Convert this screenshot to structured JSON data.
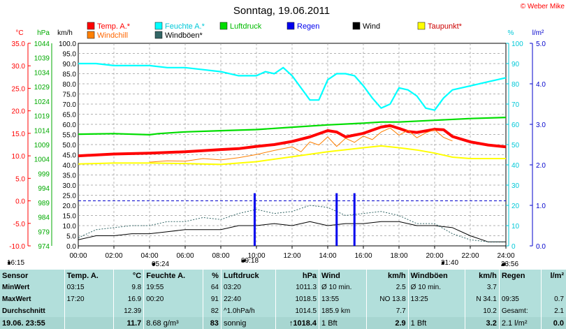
{
  "chart_data": {
    "type": "line",
    "title": "Sonntag, 19.06.2011",
    "copyright": "© Weber Mike",
    "legend": [
      {
        "label": "Temp. A.*",
        "color": "#ff0000"
      },
      {
        "label": "Feuchte A.*",
        "color": "#00ffff"
      },
      {
        "label": "Luftdruck",
        "color": "#00dd00"
      },
      {
        "label": "Regen",
        "color": "#0000ee"
      },
      {
        "label": "Wind",
        "color": "#000000"
      },
      {
        "label": "Taupunkt*",
        "color": "#ffff00"
      },
      {
        "label": "Windchill",
        "color": "#ff8000"
      },
      {
        "label": "Windböen*",
        "color": "#336666"
      }
    ],
    "axes": {
      "temp": {
        "unit": "°C",
        "ticks": [
          "35.0",
          "30.0",
          "25.0",
          "20.0",
          "15.0",
          "10.0",
          "5.0",
          "0.0",
          "-5.0",
          "-10.0"
        ],
        "ylim": [
          -10,
          35
        ]
      },
      "pressure": {
        "unit": "hPa",
        "ticks": [
          "1044",
          "1039",
          "1034",
          "1029",
          "1024",
          "1019",
          "1014",
          "1009",
          "1004",
          "999",
          "994",
          "989",
          "984",
          "979",
          "974"
        ],
        "ylim": [
          974,
          1044
        ]
      },
      "wind": {
        "unit": "km/h",
        "ticks": [
          "100.0",
          "95.0",
          "90.0",
          "85.0",
          "80.0",
          "75.0",
          "70.0",
          "65.0",
          "60.0",
          "55.0",
          "50.0",
          "45.0",
          "40.0",
          "35.0",
          "30.0",
          "25.0",
          "20.0",
          "15.0",
          "10.0",
          "5.0",
          "0.0"
        ],
        "ylim": [
          0,
          100
        ]
      },
      "humidity": {
        "unit": "%",
        "ticks": [
          "100",
          "90",
          "80",
          "70",
          "60",
          "50",
          "40",
          "30",
          "20",
          "10",
          "0"
        ],
        "ylim": [
          0,
          100
        ]
      },
      "rain": {
        "unit": "l/m²",
        "ticks": [
          "5.0",
          "4.0",
          "3.0",
          "2.0",
          "1.0",
          "0.0"
        ],
        "ylim": [
          0,
          5
        ]
      },
      "x": {
        "ticks": [
          "00:00",
          "02:00",
          "04:00",
          "06:00",
          "08:00",
          "10:00",
          "12:00",
          "14:00",
          "16:00",
          "18:00",
          "20:00",
          "22:00",
          "24:00"
        ],
        "xlim": [
          0,
          24
        ]
      }
    },
    "series": [
      {
        "name": "Feuchte A.*",
        "axis": "humidity",
        "x": [
          0,
          1,
          2,
          3,
          4,
          5,
          6,
          7,
          8,
          9,
          10,
          10.5,
          11,
          11.5,
          12,
          12.5,
          13,
          13.5,
          14,
          14.5,
          15,
          15.5,
          16,
          16.5,
          17,
          17.5,
          18,
          18.5,
          19,
          19.5,
          20,
          20.5,
          21,
          21.5,
          22,
          23,
          24
        ],
        "y": [
          90,
          90,
          89,
          89,
          89,
          88,
          88,
          87,
          86,
          84,
          84,
          86,
          85,
          88,
          84,
          78,
          72,
          72,
          82,
          85,
          85,
          84,
          79,
          73,
          68,
          70,
          78,
          77,
          74,
          68,
          67,
          73,
          77,
          78,
          79,
          81,
          83
        ]
      },
      {
        "name": "Luftdruck",
        "axis": "pressure",
        "x": [
          0,
          2,
          4,
          4.5,
          6,
          8,
          10,
          12,
          14,
          16,
          17,
          18,
          20,
          22,
          24
        ],
        "y": [
          1012.6,
          1012.8,
          1012.4,
          1012.8,
          1013.4,
          1013.8,
          1014.2,
          1015.0,
          1015.8,
          1016.4,
          1016.8,
          1016.8,
          1017.4,
          1018.0,
          1018.4
        ]
      },
      {
        "name": "Temp. A.*",
        "axis": "temp",
        "x": [
          0,
          2,
          4,
          6,
          8,
          9,
          10,
          11,
          12,
          13,
          14,
          14.5,
          15,
          16,
          17,
          17.5,
          18,
          18.5,
          19,
          20,
          20.5,
          21,
          22,
          23,
          24
        ],
        "y": [
          10.0,
          10.4,
          10.6,
          10.9,
          11.4,
          11.6,
          12.1,
          12.5,
          13.2,
          14.2,
          15.6,
          15.3,
          14.2,
          15.0,
          16.4,
          16.7,
          16.1,
          15.4,
          15.2,
          15.9,
          15.8,
          14.3,
          13.1,
          12.4,
          12.0
        ]
      },
      {
        "name": "Windchill",
        "axis": "temp",
        "x": [
          4,
          5,
          6,
          7,
          8,
          9,
          10,
          11,
          12,
          12.5,
          13,
          13.5,
          14,
          14.5,
          15,
          15.5,
          16,
          16.5,
          17,
          17.5,
          18,
          18.5,
          19,
          19.5,
          20,
          20.5,
          21
        ],
        "y": [
          8.6,
          8.9,
          8.8,
          9.4,
          9.1,
          9.6,
          10.3,
          11.2,
          12.0,
          10.9,
          13.1,
          12.4,
          14.2,
          12.1,
          13.9,
          13.0,
          14.4,
          13.6,
          15.3,
          16.2,
          14.6,
          15.7,
          14.0,
          15.1,
          15.8,
          14.1,
          13.3
        ]
      },
      {
        "name": "Taupunkt*",
        "axis": "temp",
        "x": [
          0,
          2,
          4,
          6,
          8,
          10,
          12,
          14,
          16,
          17,
          18,
          19,
          20,
          21,
          22,
          24
        ],
        "y": [
          8.2,
          8.4,
          8.4,
          8.3,
          8.1,
          8.7,
          9.8,
          10.9,
          11.8,
          12.2,
          11.8,
          11.3,
          10.6,
          9.7,
          9.4,
          9.4
        ]
      },
      {
        "name": "Wind",
        "axis": "wind",
        "x": [
          0,
          1,
          2,
          3,
          4,
          5,
          6,
          7,
          8,
          9,
          10,
          11,
          12,
          13,
          14,
          15,
          16,
          17,
          18,
          19,
          20,
          21,
          22,
          23,
          24
        ],
        "y": [
          3,
          5,
          5,
          6,
          6,
          7,
          8,
          8,
          8,
          10,
          10,
          11,
          10,
          12,
          10,
          11,
          11,
          12,
          12,
          10,
          10,
          9,
          5,
          2,
          2
        ]
      },
      {
        "name": "Windböen*",
        "axis": "wind",
        "x": [
          0,
          1,
          2,
          3,
          4,
          5,
          6,
          7,
          8,
          9,
          10,
          11,
          12,
          13,
          14,
          15,
          16,
          17,
          18,
          19,
          20,
          21,
          22,
          23,
          24
        ],
        "y": [
          4,
          8,
          9,
          10,
          10,
          12,
          12,
          14,
          13,
          16,
          18,
          16,
          17,
          20,
          19,
          15,
          16,
          17,
          15,
          11,
          11,
          6,
          3,
          2,
          2
        ]
      },
      {
        "name": "Regen",
        "axis": "rain",
        "type": "bar",
        "x": [
          9.9,
          14.5,
          15.5
        ],
        "y": [
          1.3,
          1.3,
          1.3
        ]
      }
    ],
    "grid": true,
    "markers": {
      "left": "16:15",
      "sunrise": "05:24",
      "moonrise": "09:18",
      "sunset": "21:40",
      "moonset": "23:56"
    }
  },
  "stats": {
    "headers": [
      {
        "label": "Sensor",
        "unit": ""
      },
      {
        "label": "Temp. A.",
        "unit": "°C"
      },
      {
        "label": "Feuchte A.",
        "unit": "%"
      },
      {
        "label": "Luftdruck",
        "unit": "hPa"
      },
      {
        "label": "Wind",
        "unit": "km/h"
      },
      {
        "label": "Windböen",
        "unit": "km/h"
      },
      {
        "label": "Regen",
        "unit": "l/m²"
      }
    ],
    "rows": [
      {
        "label": "MinWert",
        "cells": [
          [
            "03:15",
            "9.8"
          ],
          [
            "19:55",
            "64"
          ],
          [
            "03:20",
            "1011.3"
          ],
          [
            "Ø 10 min.",
            "2.5"
          ],
          [
            "Ø 10 min.",
            "3.7"
          ],
          [
            "",
            ""
          ]
        ]
      },
      {
        "label": "MaxWert",
        "cells": [
          [
            "17:20",
            "16.9"
          ],
          [
            "00:20",
            "91"
          ],
          [
            "22:40",
            "1018.5"
          ],
          [
            "13:55",
            "NO 13.8"
          ],
          [
            "13:25",
            "N 34.1"
          ],
          [
            "09:35",
            "0.7"
          ]
        ]
      },
      {
        "label": "Durchschnitt",
        "cells": [
          [
            "",
            "12.39"
          ],
          [
            "",
            "82"
          ],
          [
            "^1.0hPa/h",
            "1014.5"
          ],
          [
            "185.9 km",
            "7.7"
          ],
          [
            "",
            "10.2"
          ],
          [
            "Gesamt:",
            "2.1"
          ]
        ]
      },
      {
        "label": "19.06. 23:55",
        "cells": [
          [
            "",
            "11.7"
          ],
          [
            "8.68 g/m³",
            "83"
          ],
          [
            "sonnig",
            "↑1018.4"
          ],
          [
            "1 Bft",
            "2.9"
          ],
          [
            "1 Bft",
            "3.2"
          ],
          [
            "2.1 l/m²",
            "0.0"
          ]
        ]
      }
    ]
  }
}
